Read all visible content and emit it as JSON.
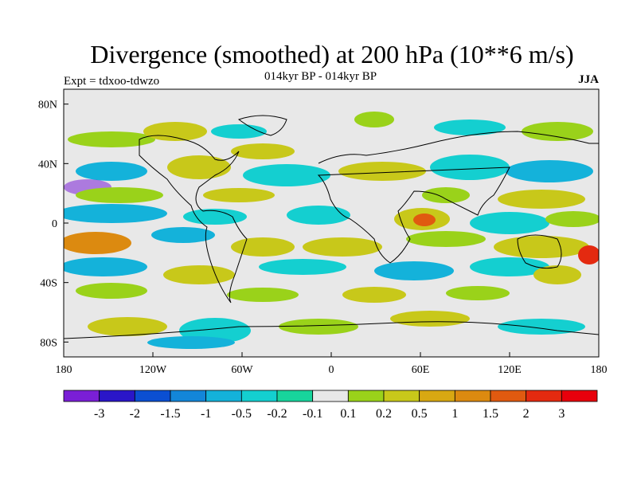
{
  "title": "Divergence (smoothed) at 200 hPa (10**6 m/s)",
  "subtitle": "014kyr BP - 014kyr BP",
  "experiment": "Expt = tdxoo-tdwzo",
  "season": "JJA",
  "map": {
    "projection": "cylindrical equidistant",
    "lon_range": [
      -180,
      180
    ],
    "lat_range": [
      -90,
      90
    ],
    "background_color": "#e8e8e8",
    "x_ticks": [
      {
        "lon": -180,
        "label": "180"
      },
      {
        "lon": -120,
        "label": "120W"
      },
      {
        "lon": -60,
        "label": "60W"
      },
      {
        "lon": 0,
        "label": "0"
      },
      {
        "lon": 60,
        "label": "60E"
      },
      {
        "lon": 120,
        "label": "120E"
      },
      {
        "lon": 180,
        "label": "180"
      }
    ],
    "y_ticks": [
      {
        "lat": 80,
        "label": "80N"
      },
      {
        "lat": 40,
        "label": "40N"
      },
      {
        "lat": 0,
        "label": "0"
      },
      {
        "lat": -40,
        "label": "40S"
      },
      {
        "lat": -80,
        "label": "80S"
      }
    ]
  },
  "colorbar": {
    "levels": [
      "-3",
      "-2",
      "-1.5",
      "-1",
      "-0.5",
      "-0.2",
      "-0.1",
      "0.1",
      "0.2",
      "0.5",
      "1",
      "1.5",
      "2",
      "3"
    ],
    "colors": [
      "#7a1fd6",
      "#2a16c8",
      "#0b4fd2",
      "#1386d9",
      "#14b2da",
      "#14cfd0",
      "#18d49c",
      "#e8e8e8",
      "#9ad21a",
      "#c8c81a",
      "#d8a812",
      "#dc8a10",
      "#e05a10",
      "#e42a10",
      "#e8000c"
    ]
  },
  "colors": {
    "neg_strong": "#14b2da",
    "neg_mid": "#14cfd0",
    "neg_weak": "#18d49c",
    "pos_weak": "#9ad21a",
    "pos_mid": "#c8c81a",
    "pos_strong": "#d8a812",
    "pos_vstrong": "#dc8a10",
    "pos_max": "#e05a10"
  }
}
